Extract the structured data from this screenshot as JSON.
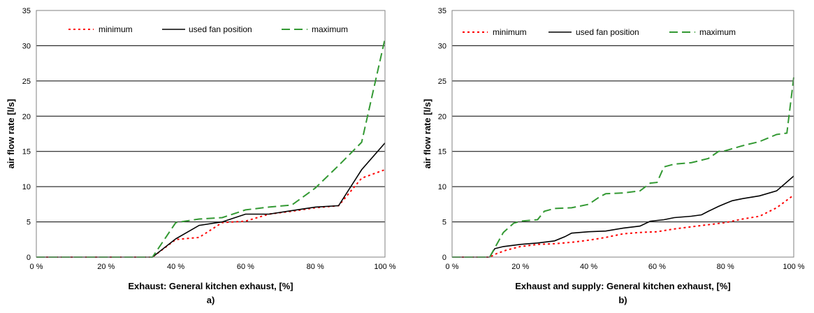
{
  "chart_data": [
    {
      "type": "line",
      "panel_label": "a)",
      "xlabel": "Exhaust: General kitchen exhaust, [%]",
      "ylabel": "air flow rate [l/s]",
      "xlim": [
        0,
        100
      ],
      "ylim": [
        0,
        35
      ],
      "x_ticks": [
        "0 %",
        "20 %",
        "40 %",
        "60 %",
        "80 %",
        "100 %"
      ],
      "y_ticks": [
        "0",
        "5",
        "10",
        "15",
        "20",
        "25",
        "30",
        "35"
      ],
      "grid": "horizontal",
      "legend": "top",
      "series": [
        {
          "name": "minimum",
          "color": "#ff0000",
          "dash": "dotted",
          "points": [
            [
              0,
              0
            ],
            [
              33.3,
              0
            ],
            [
              40,
              2.5
            ],
            [
              46.7,
              2.8
            ],
            [
              53.3,
              4.9
            ],
            [
              60,
              5.1
            ],
            [
              66.7,
              6.1
            ],
            [
              73.3,
              6.5
            ],
            [
              80,
              7.0
            ],
            [
              86.7,
              7.3
            ],
            [
              93.3,
              11.2
            ],
            [
              100,
              12.4
            ]
          ]
        },
        {
          "name": "used fan position",
          "color": "#000000",
          "dash": "solid",
          "points": [
            [
              0,
              0
            ],
            [
              33.3,
              0
            ],
            [
              40,
              2.6
            ],
            [
              46.7,
              4.5
            ],
            [
              53.3,
              5.0
            ],
            [
              60,
              6.1
            ],
            [
              66.7,
              6.1
            ],
            [
              73.3,
              6.6
            ],
            [
              80,
              7.1
            ],
            [
              86.7,
              7.3
            ],
            [
              93.3,
              12.4
            ],
            [
              100,
              16.2
            ]
          ]
        },
        {
          "name": "maximum",
          "color": "#339933",
          "dash": "dashed",
          "points": [
            [
              0,
              0
            ],
            [
              33.3,
              0
            ],
            [
              40,
              4.9
            ],
            [
              46.7,
              5.4
            ],
            [
              53.3,
              5.6
            ],
            [
              60,
              6.7
            ],
            [
              66.7,
              7.1
            ],
            [
              73.3,
              7.4
            ],
            [
              80,
              9.8
            ],
            [
              86.7,
              13.0
            ],
            [
              93.3,
              16.3
            ],
            [
              100,
              31.0
            ]
          ]
        }
      ]
    },
    {
      "type": "line",
      "panel_label": "b)",
      "xlabel": "Exhaust and supply: General kitchen exhaust, [%]",
      "ylabel": "air flow rate [l/s]",
      "xlim": [
        0,
        100
      ],
      "ylim": [
        0,
        35
      ],
      "x_ticks": [
        "0 %",
        "20 %",
        "40 %",
        "60 %",
        "80 %",
        "100 %"
      ],
      "y_ticks": [
        "0",
        "5",
        "10",
        "15",
        "20",
        "25",
        "30",
        "35"
      ],
      "grid": "horizontal",
      "legend": "top",
      "series": [
        {
          "name": "minimum",
          "color": "#ff0000",
          "dash": "dotted",
          "points": [
            [
              0,
              0
            ],
            [
              11,
              0
            ],
            [
              13,
              0.5
            ],
            [
              16,
              1.0
            ],
            [
              20,
              1.5
            ],
            [
              25,
              1.8
            ],
            [
              30,
              1.9
            ],
            [
              35,
              2.1
            ],
            [
              40,
              2.4
            ],
            [
              45,
              2.8
            ],
            [
              50,
              3.3
            ],
            [
              55,
              3.5
            ],
            [
              60,
              3.6
            ],
            [
              65,
              4.0
            ],
            [
              70,
              4.3
            ],
            [
              75,
              4.6
            ],
            [
              80,
              4.9
            ],
            [
              85,
              5.4
            ],
            [
              90,
              5.8
            ],
            [
              95,
              7.0
            ],
            [
              100,
              8.8
            ]
          ]
        },
        {
          "name": "used fan position",
          "color": "#000000",
          "dash": "solid",
          "points": [
            [
              0,
              0
            ],
            [
              11,
              0
            ],
            [
              12.5,
              1.2
            ],
            [
              15,
              1.5
            ],
            [
              20,
              1.8
            ],
            [
              25,
              2.0
            ],
            [
              30,
              2.3
            ],
            [
              33,
              2.9
            ],
            [
              35,
              3.4
            ],
            [
              40,
              3.6
            ],
            [
              45,
              3.7
            ],
            [
              50,
              4.1
            ],
            [
              55,
              4.4
            ],
            [
              58,
              5.1
            ],
            [
              62,
              5.3
            ],
            [
              65,
              5.6
            ],
            [
              70,
              5.8
            ],
            [
              73,
              6.0
            ],
            [
              75,
              6.5
            ],
            [
              78,
              7.2
            ],
            [
              80,
              7.6
            ],
            [
              82,
              8.0
            ],
            [
              85,
              8.3
            ],
            [
              90,
              8.7
            ],
            [
              95,
              9.4
            ],
            [
              100,
              11.5
            ]
          ]
        },
        {
          "name": "maximum",
          "color": "#339933",
          "dash": "dashed",
          "points": [
            [
              0,
              0
            ],
            [
              11,
              0
            ],
            [
              15,
              3.5
            ],
            [
              18,
              4.8
            ],
            [
              20,
              5.1
            ],
            [
              25,
              5.3
            ],
            [
              27,
              6.5
            ],
            [
              30,
              6.9
            ],
            [
              35,
              7.0
            ],
            [
              40,
              7.5
            ],
            [
              43,
              8.5
            ],
            [
              45,
              9.0
            ],
            [
              50,
              9.1
            ],
            [
              55,
              9.4
            ],
            [
              58,
              10.5
            ],
            [
              60,
              10.6
            ],
            [
              62,
              12.8
            ],
            [
              65,
              13.2
            ],
            [
              70,
              13.4
            ],
            [
              75,
              14.0
            ],
            [
              78,
              15.0
            ],
            [
              80,
              15.1
            ],
            [
              85,
              15.8
            ],
            [
              90,
              16.4
            ],
            [
              95,
              17.4
            ],
            [
              98,
              17.6
            ],
            [
              100,
              25.5
            ]
          ]
        }
      ]
    }
  ]
}
